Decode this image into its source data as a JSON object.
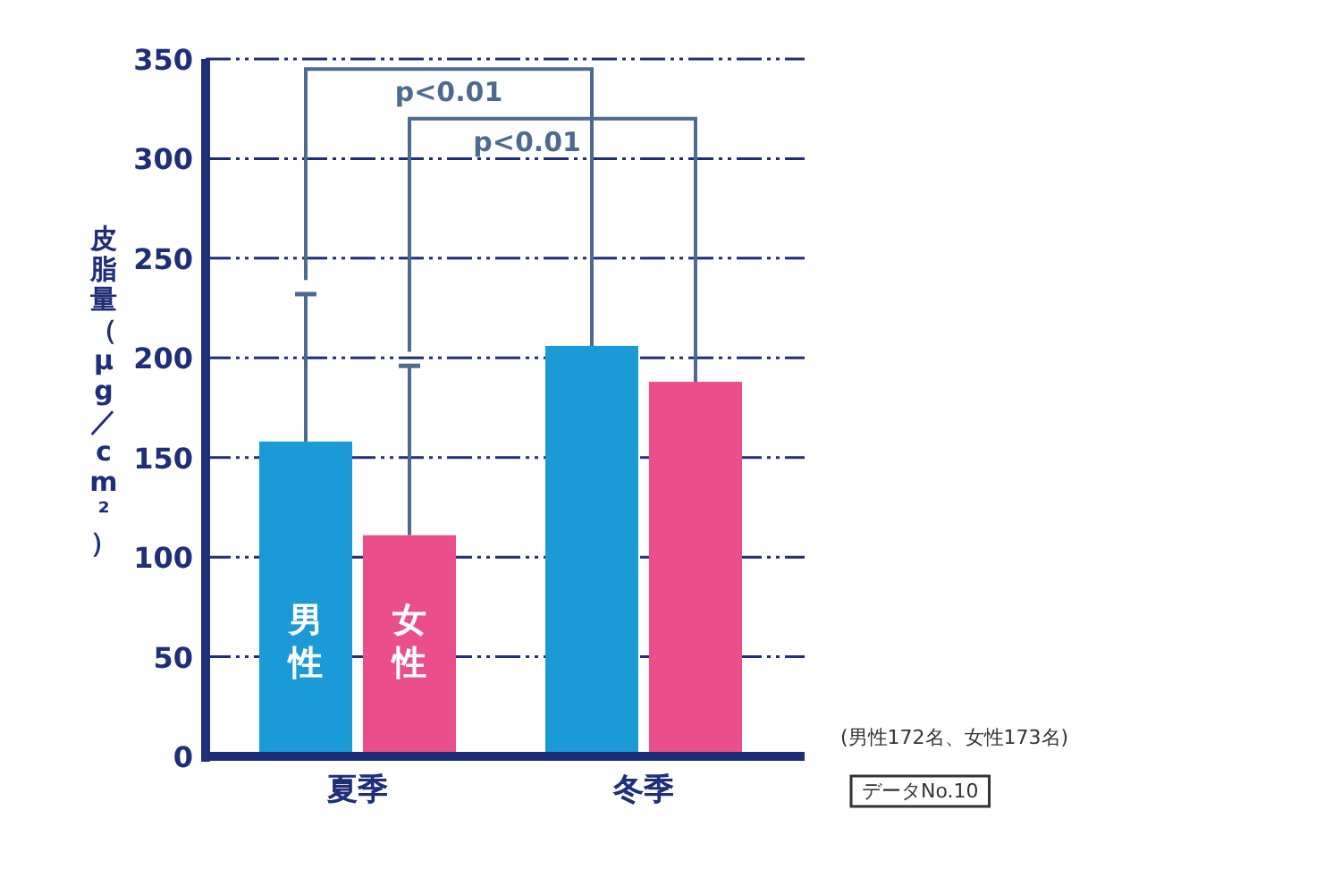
{
  "chart_data": {
    "type": "bar",
    "ylabel": "皮脂量（μg／cm²）",
    "categories": [
      "夏季",
      "冬季"
    ],
    "series": [
      {
        "name": "男性",
        "color": "#1a9ad6",
        "values": [
          158,
          206
        ],
        "errors": [
          [
            158,
            232
          ],
          null
        ]
      },
      {
        "name": "女性",
        "color": "#ea4f8b",
        "values": [
          111,
          188
        ],
        "errors": [
          [
            111,
            196
          ],
          null
        ]
      }
    ],
    "ylim": [
      0,
      350
    ],
    "yticks": [
      0,
      50,
      100,
      150,
      200,
      250,
      300,
      350
    ],
    "grid": "y",
    "annotations": [
      "p<0.01",
      "p<0.01",
      "(男性172名、女性173名)",
      "データNo.10"
    ]
  }
}
